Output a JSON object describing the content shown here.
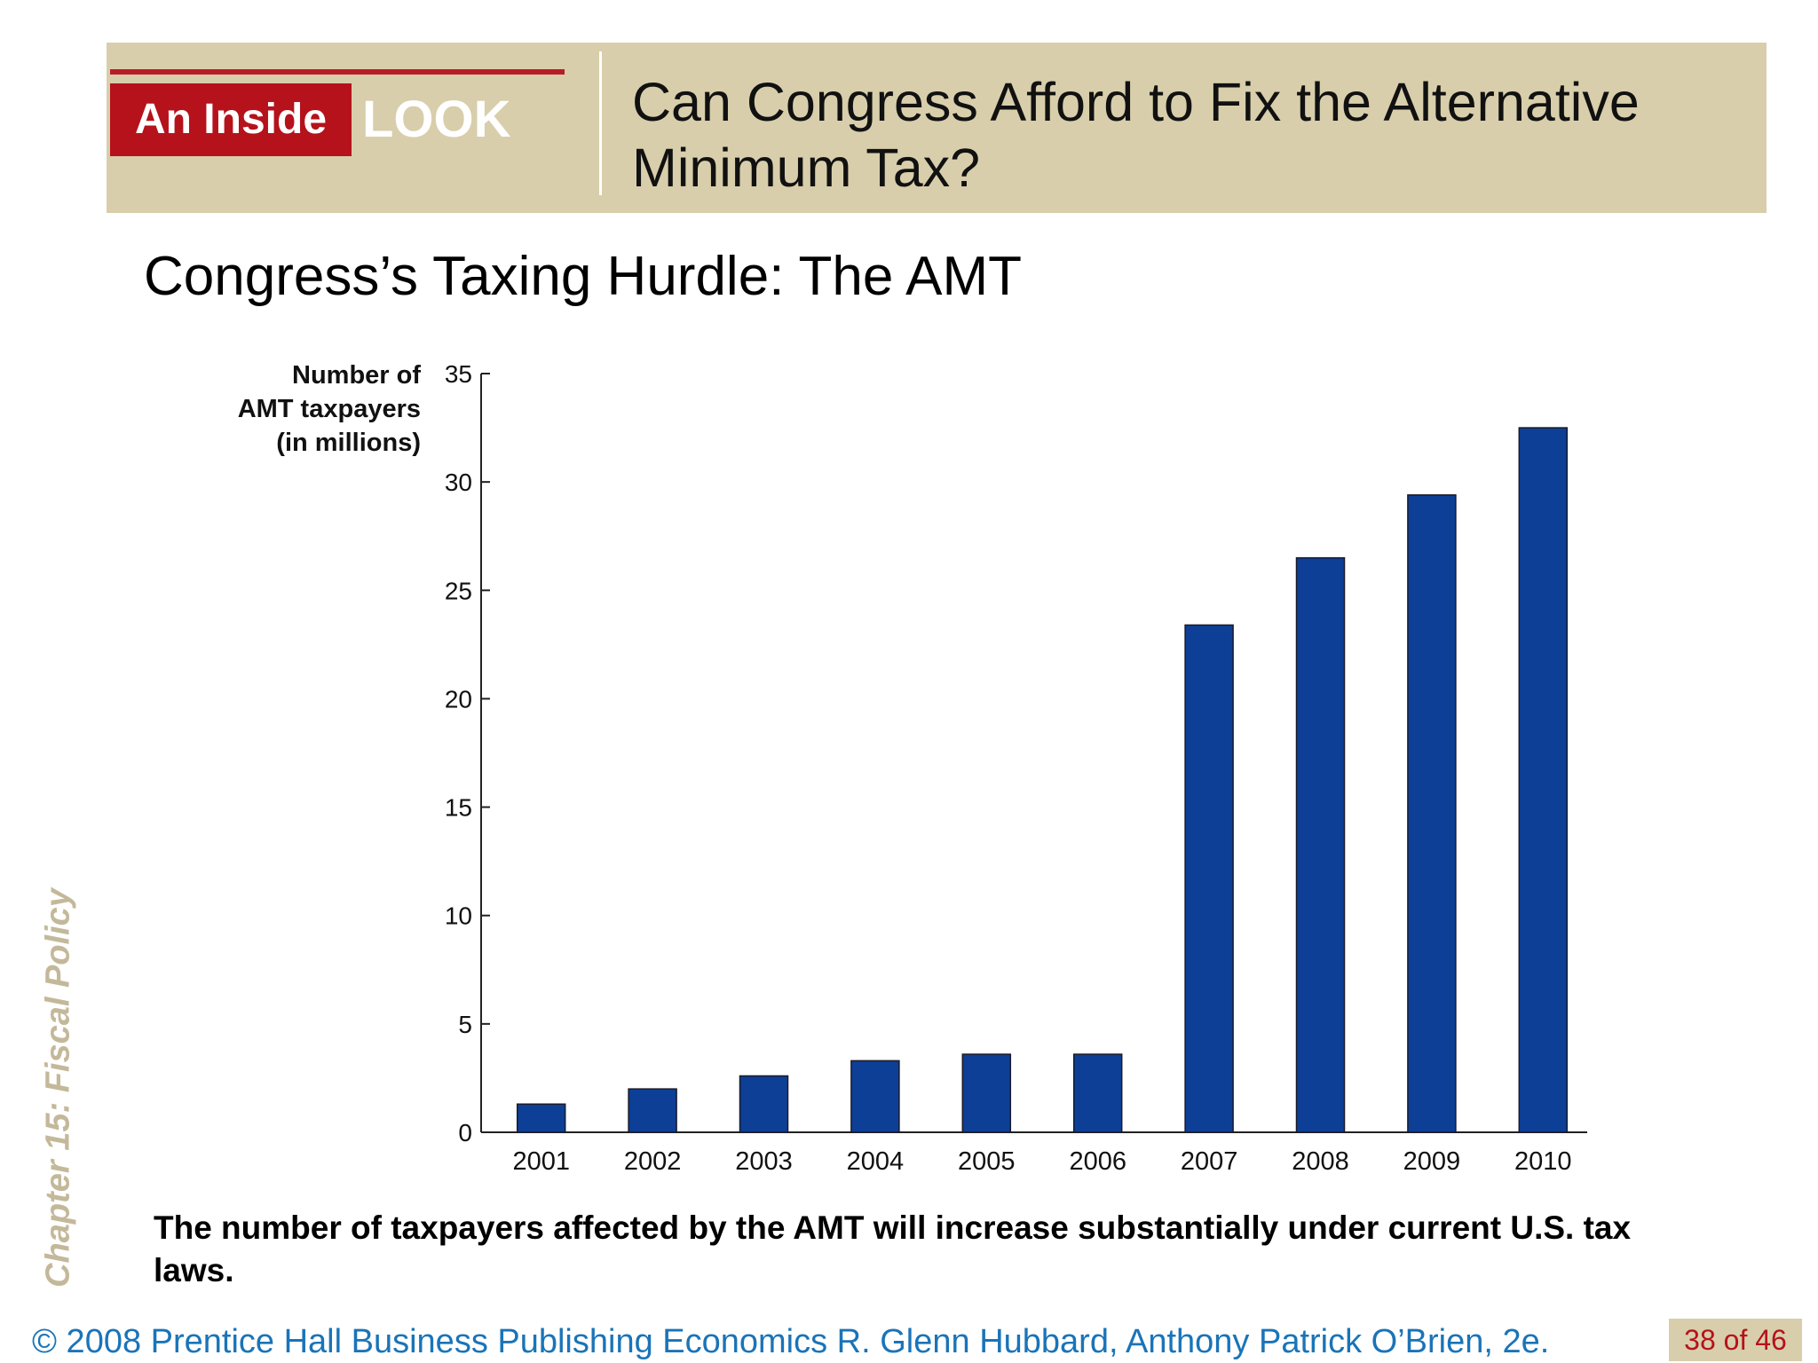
{
  "header": {
    "badge_left": "An Inside",
    "badge_right": "LOOK",
    "title": "Can Congress Afford to Fix the Alternative Minimum Tax?"
  },
  "slide_title": "Congress’s Taxing Hurdle:  The AMT",
  "side_label": "Chapter 15:  Fiscal Policy",
  "chart_data": {
    "type": "bar",
    "categories": [
      "2001",
      "2002",
      "2003",
      "2004",
      "2005",
      "2006",
      "2007",
      "2008",
      "2009",
      "2010"
    ],
    "values": [
      1.3,
      2.0,
      2.6,
      3.3,
      3.6,
      3.6,
      23.4,
      26.5,
      29.4,
      32.5
    ],
    "ylabel": "Number of\nAMT taxpayers\n(in millions)",
    "xlabel": "",
    "ylim": [
      0,
      35
    ],
    "yticks": [
      0,
      5,
      10,
      15,
      20,
      25,
      30,
      35
    ],
    "grid": false,
    "bar_color": "#0d3f96"
  },
  "caption": "The number of taxpayers affected by the AMT will increase substantially under current U.S. tax laws.",
  "footer": {
    "text": "© 2008 Prentice Hall Business Publishing   Economics  R. Glenn Hubbard, Anthony Patrick O’Brien, 2e.",
    "page": "38 of 46"
  }
}
